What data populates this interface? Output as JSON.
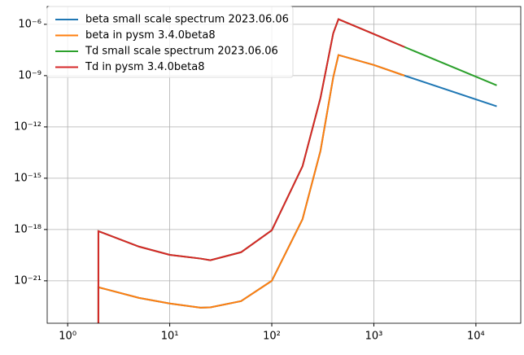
{
  "chart_data": {
    "type": "line",
    "log_x": true,
    "log_y": true,
    "grid": true,
    "legend": "upper left",
    "x": [
      2,
      2,
      5,
      10,
      20,
      25,
      50,
      100,
      200,
      300,
      400,
      450,
      1000,
      2000,
      16000
    ],
    "series": [
      {
        "name": "beta small scale spectrum 2023.06.06",
        "color": "#1f77b4",
        "values": [
          1e-25,
          4.2e-22,
          1e-22,
          4.7e-23,
          2.7e-23,
          2.8e-23,
          6.5e-23,
          1e-21,
          4e-18,
          4e-14,
          8e-10,
          1.6e-08,
          4.2e-09,
          1e-09,
          1.6e-11
        ]
      },
      {
        "name": "beta in pysm 3.4.0beta8",
        "color": "#ff7f0e",
        "values": [
          1e-25,
          4.2e-22,
          1e-22,
          4.7e-23,
          2.7e-23,
          2.8e-23,
          6.5e-23,
          1e-21,
          4e-18,
          4e-14,
          8e-10,
          1.6e-08,
          4.2e-09,
          1e-09,
          null
        ]
      },
      {
        "name": "Td small scale spectrum 2023.06.06",
        "color": "#2ca02c",
        "values": [
          1e-25,
          8e-19,
          1e-19,
          3.3e-20,
          2e-20,
          1.6e-20,
          4.7e-20,
          9e-19,
          5e-15,
          5e-11,
          3e-07,
          2e-06,
          2.7e-07,
          4.7e-08,
          2.7e-10
        ]
      },
      {
        "name": "Td in pysm 3.4.0beta8",
        "color": "#d62728",
        "values": [
          1e-25,
          8e-19,
          1e-19,
          3.3e-20,
          2e-20,
          1.6e-20,
          4.7e-20,
          9e-19,
          5e-15,
          5e-11,
          3e-07,
          2e-06,
          2.7e-07,
          4.7e-08,
          null
        ]
      }
    ],
    "xlim": [
      0.63,
      27500
    ],
    "ylim": [
      3.3e-24,
      1.1e-05
    ],
    "xticks": [
      {
        "value": 1,
        "label": "10⁰"
      },
      {
        "value": 10,
        "label": "10¹"
      },
      {
        "value": 100,
        "label": "10²"
      },
      {
        "value": 1000,
        "label": "10³"
      },
      {
        "value": 10000,
        "label": "10⁴"
      }
    ],
    "yticks": [
      {
        "value": 1e-21,
        "label": "10⁻²¹"
      },
      {
        "value": 1e-18,
        "label": "10⁻¹⁸"
      },
      {
        "value": 1e-15,
        "label": "10⁻¹⁵"
      },
      {
        "value": 1e-12,
        "label": "10⁻¹²"
      },
      {
        "value": 1e-09,
        "label": "10⁻⁹"
      },
      {
        "value": 1e-06,
        "label": "10⁻⁶"
      }
    ]
  }
}
